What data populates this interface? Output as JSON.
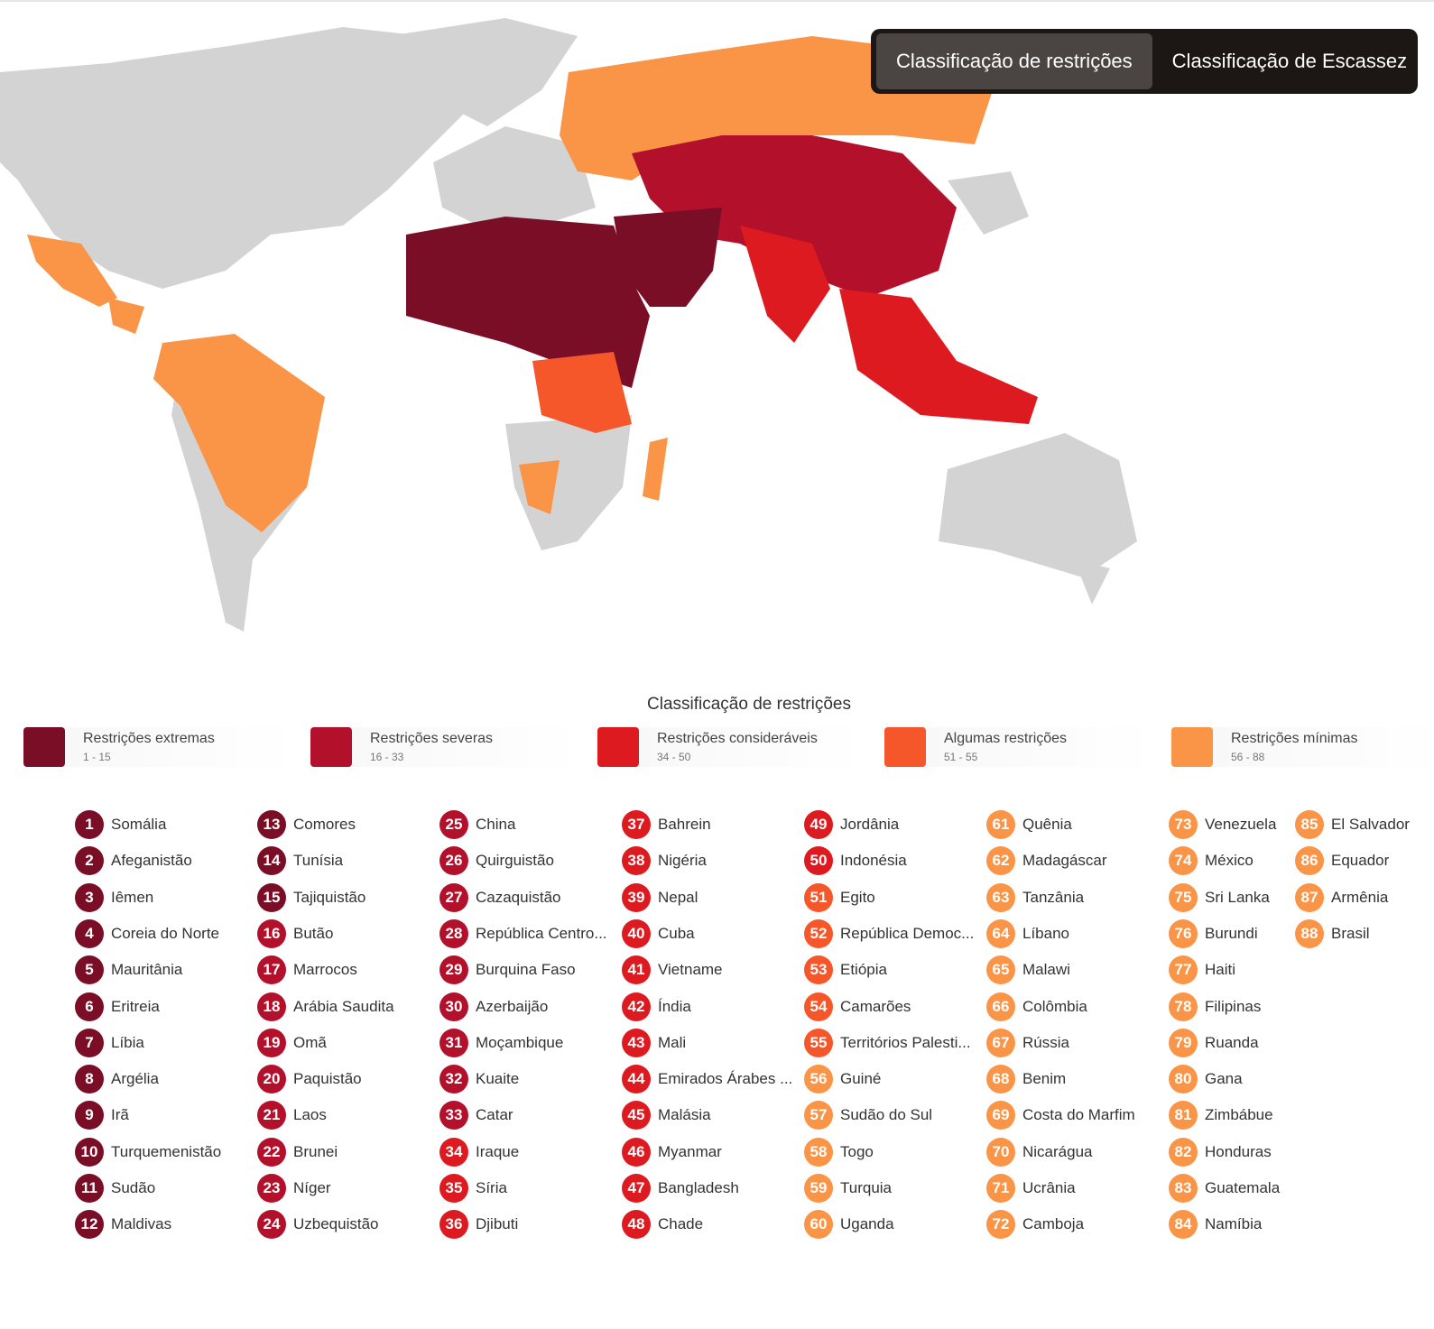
{
  "tabs": [
    "Classificação de restrições",
    "Classificação de Escassez"
  ],
  "legend": {
    "title": "Classificação de restrições",
    "levels": [
      {
        "name": "Restrições extremas",
        "range": "1 - 15",
        "color": "#7a0e26"
      },
      {
        "name": "Restrições severas",
        "range": "16 - 33",
        "color": "#b3102c"
      },
      {
        "name": "Restrições consideráveis",
        "range": "34 - 50",
        "color": "#dd1a20"
      },
      {
        "name": "Algumas restrições",
        "range": "51 - 55",
        "color": "#f5562a"
      },
      {
        "name": "Restrições mínimas",
        "range": "56 - 88",
        "color": "#fa9446"
      }
    ]
  },
  "countries": [
    {
      "rank": 1,
      "name": "Somália"
    },
    {
      "rank": 2,
      "name": "Afeganistão"
    },
    {
      "rank": 3,
      "name": "Iêmen"
    },
    {
      "rank": 4,
      "name": "Coreia do Norte"
    },
    {
      "rank": 5,
      "name": "Mauritânia"
    },
    {
      "rank": 6,
      "name": "Eritreia"
    },
    {
      "rank": 7,
      "name": "Líbia"
    },
    {
      "rank": 8,
      "name": "Argélia"
    },
    {
      "rank": 9,
      "name": "Irã"
    },
    {
      "rank": 10,
      "name": "Turquemenistão"
    },
    {
      "rank": 11,
      "name": "Sudão"
    },
    {
      "rank": 12,
      "name": "Maldivas"
    },
    {
      "rank": 13,
      "name": "Comores"
    },
    {
      "rank": 14,
      "name": "Tunísia"
    },
    {
      "rank": 15,
      "name": "Tajiquistão"
    },
    {
      "rank": 16,
      "name": "Butão"
    },
    {
      "rank": 17,
      "name": "Marrocos"
    },
    {
      "rank": 18,
      "name": "Arábia Saudita"
    },
    {
      "rank": 19,
      "name": "Omã"
    },
    {
      "rank": 20,
      "name": "Paquistão"
    },
    {
      "rank": 21,
      "name": "Laos"
    },
    {
      "rank": 22,
      "name": "Brunei"
    },
    {
      "rank": 23,
      "name": "Níger"
    },
    {
      "rank": 24,
      "name": "Uzbequistão"
    },
    {
      "rank": 25,
      "name": "China"
    },
    {
      "rank": 26,
      "name": "Quirguistão"
    },
    {
      "rank": 27,
      "name": "Cazaquistão"
    },
    {
      "rank": 28,
      "name": "República Centro..."
    },
    {
      "rank": 29,
      "name": "Burquina Faso"
    },
    {
      "rank": 30,
      "name": "Azerbaijão"
    },
    {
      "rank": 31,
      "name": "Moçambique"
    },
    {
      "rank": 32,
      "name": "Kuaite"
    },
    {
      "rank": 33,
      "name": "Catar"
    },
    {
      "rank": 34,
      "name": "Iraque"
    },
    {
      "rank": 35,
      "name": "Síria"
    },
    {
      "rank": 36,
      "name": "Djibuti"
    },
    {
      "rank": 37,
      "name": "Bahrein"
    },
    {
      "rank": 38,
      "name": "Nigéria"
    },
    {
      "rank": 39,
      "name": "Nepal"
    },
    {
      "rank": 40,
      "name": "Cuba"
    },
    {
      "rank": 41,
      "name": "Vietname"
    },
    {
      "rank": 42,
      "name": "Índia"
    },
    {
      "rank": 43,
      "name": "Mali"
    },
    {
      "rank": 44,
      "name": "Emirados Árabes ..."
    },
    {
      "rank": 45,
      "name": "Malásia"
    },
    {
      "rank": 46,
      "name": "Myanmar"
    },
    {
      "rank": 47,
      "name": "Bangladesh"
    },
    {
      "rank": 48,
      "name": "Chade"
    },
    {
      "rank": 49,
      "name": "Jordânia"
    },
    {
      "rank": 50,
      "name": "Indonésia"
    },
    {
      "rank": 51,
      "name": "Egito"
    },
    {
      "rank": 52,
      "name": "República Democ..."
    },
    {
      "rank": 53,
      "name": "Etiópia"
    },
    {
      "rank": 54,
      "name": "Camarões"
    },
    {
      "rank": 55,
      "name": "Territórios Palesti..."
    },
    {
      "rank": 56,
      "name": "Guiné"
    },
    {
      "rank": 57,
      "name": "Sudão do Sul"
    },
    {
      "rank": 58,
      "name": "Togo"
    },
    {
      "rank": 59,
      "name": "Turquia"
    },
    {
      "rank": 60,
      "name": "Uganda"
    },
    {
      "rank": 61,
      "name": "Quênia"
    },
    {
      "rank": 62,
      "name": "Madagáscar"
    },
    {
      "rank": 63,
      "name": "Tanzânia"
    },
    {
      "rank": 64,
      "name": "Líbano"
    },
    {
      "rank": 65,
      "name": "Malawi"
    },
    {
      "rank": 66,
      "name": "Colômbia"
    },
    {
      "rank": 67,
      "name": "Rússia"
    },
    {
      "rank": 68,
      "name": "Benim"
    },
    {
      "rank": 69,
      "name": "Costa do Marfim"
    },
    {
      "rank": 70,
      "name": "Nicarágua"
    },
    {
      "rank": 71,
      "name": "Ucrânia"
    },
    {
      "rank": 72,
      "name": "Camboja"
    },
    {
      "rank": 73,
      "name": "Venezuela"
    },
    {
      "rank": 74,
      "name": "México"
    },
    {
      "rank": 75,
      "name": "Sri Lanka"
    },
    {
      "rank": 76,
      "name": "Burundi"
    },
    {
      "rank": 77,
      "name": "Haiti"
    },
    {
      "rank": 78,
      "name": "Filipinas"
    },
    {
      "rank": 79,
      "name": "Ruanda"
    },
    {
      "rank": 80,
      "name": "Gana"
    },
    {
      "rank": 81,
      "name": "Zimbábue"
    },
    {
      "rank": 82,
      "name": "Honduras"
    },
    {
      "rank": 83,
      "name": "Guatemala"
    },
    {
      "rank": 84,
      "name": "Namíbia"
    },
    {
      "rank": 85,
      "name": "El Salvador"
    },
    {
      "rank": 86,
      "name": "Equador"
    },
    {
      "rank": 87,
      "name": "Armênia"
    },
    {
      "rank": 88,
      "name": "Brasil"
    }
  ]
}
